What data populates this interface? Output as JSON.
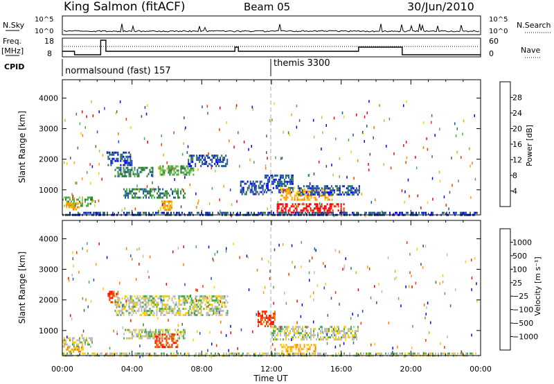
{
  "header": {
    "station": "King Salmon (fitACF)",
    "beam": "Beam 05",
    "date": "30/Jun/2010"
  },
  "top_panels": {
    "nsky_label": "N.Sky",
    "nsearch_label": "N.Search",
    "nsky_ticks": [
      "10^5",
      "10^0"
    ],
    "freq_label_1": "Freq.",
    "freq_label_2": "[MHz]",
    "freq_ticks": [
      "18",
      "8"
    ],
    "nave_label": "Nave",
    "nave_ticks": [
      "60",
      "0"
    ],
    "cpid_label": "CPID",
    "cpid_segments": [
      {
        "start_hour": 0.0,
        "name": "normalsound (fast) 157"
      },
      {
        "start_hour": 12.0,
        "name": "themis 3300"
      }
    ]
  },
  "colorbars": {
    "power": {
      "label": "Power [dB]",
      "ticks": [
        "28",
        "24",
        "20",
        "16",
        "12",
        "8",
        "4"
      ],
      "colors": [
        "#0000ff",
        "#1c4fb0",
        "#2e7a3a",
        "#4bab4b",
        "#9fd04a",
        "#ffd000",
        "#ffa500",
        "#ff7a00",
        "#ff3300",
        "#ff0000"
      ]
    },
    "velocity": {
      "label": "Velocity [m s⁻¹]",
      "ticks": [
        "1000",
        "500",
        "100",
        "25",
        "−25",
        "−100",
        "−500",
        "−1000"
      ],
      "colors": [
        "#0000ff",
        "#1c4fb0",
        "#2e7a3a",
        "#4bab4b",
        "#bbbbbb",
        "#ffd000",
        "#ffa500",
        "#ff7a00",
        "#ff3300",
        "#ff0000"
      ]
    }
  },
  "chart_data": [
    {
      "type": "heatmap",
      "title": "Power",
      "xlabel": "Time UT",
      "ylabel": "Slant Range [km]",
      "xlim": [
        0,
        24
      ],
      "ylim": [
        180,
        4600
      ],
      "x_ticks": [
        "00:00",
        "04:00",
        "08:00",
        "12:00",
        "16:00",
        "20:00",
        "00:00"
      ],
      "y_ticks": [
        "1000",
        "2000",
        "3000",
        "4000"
      ],
      "y_tick_values": [
        1000,
        2000,
        3000,
        4000
      ],
      "blobs": [
        {
          "t0": 0.0,
          "t1": 1.7,
          "r0": 450,
          "r1": 780,
          "level": 3
        },
        {
          "t0": 0.2,
          "t1": 1.0,
          "r0": 380,
          "r1": 600,
          "level": 6
        },
        {
          "t0": 2.6,
          "t1": 4.0,
          "r0": 1800,
          "r1": 2250,
          "level": 1
        },
        {
          "t0": 3.0,
          "t1": 5.2,
          "r0": 1450,
          "r1": 1750,
          "level": 2
        },
        {
          "t0": 5.5,
          "t1": 7.5,
          "r0": 1500,
          "r1": 1800,
          "level": 3
        },
        {
          "t0": 7.2,
          "t1": 9.5,
          "r0": 1750,
          "r1": 2150,
          "level": 1
        },
        {
          "t0": 3.5,
          "t1": 7.0,
          "r0": 750,
          "r1": 1050,
          "level": 2
        },
        {
          "t0": 5.6,
          "t1": 6.3,
          "r0": 350,
          "r1": 650,
          "level": 6
        },
        {
          "t0": 10.2,
          "t1": 11.6,
          "r0": 850,
          "r1": 1300,
          "level": 1
        },
        {
          "t0": 11.6,
          "t1": 13.2,
          "r0": 950,
          "r1": 1500,
          "level": 1
        },
        {
          "t0": 12.5,
          "t1": 15.5,
          "r0": 700,
          "r1": 1050,
          "level": 6
        },
        {
          "t0": 12.3,
          "t1": 16.2,
          "r0": 250,
          "r1": 560,
          "level": 9
        },
        {
          "t0": 13.5,
          "t1": 17.0,
          "r0": 850,
          "r1": 1150,
          "level": 1
        },
        {
          "t0": 0.0,
          "t1": 24.0,
          "r0": 180,
          "r1": 280,
          "level": 1
        }
      ]
    },
    {
      "type": "heatmap",
      "title": "Velocity",
      "xlabel": "Time UT",
      "ylabel": "Slant Range [km]",
      "xlim": [
        0,
        24
      ],
      "ylim": [
        180,
        4600
      ],
      "x_ticks": [
        "00:00",
        "04:00",
        "08:00",
        "12:00",
        "16:00",
        "20:00",
        "00:00"
      ],
      "y_ticks": [
        "1000",
        "2000",
        "3000",
        "4000"
      ],
      "y_tick_values": [
        1000,
        2000,
        3000,
        4000
      ],
      "blobs": [
        {
          "t0": 0.0,
          "t1": 1.7,
          "r0": 450,
          "r1": 780,
          "level": 4
        },
        {
          "t0": 0.2,
          "t1": 1.2,
          "r0": 300,
          "r1": 480,
          "level": 6
        },
        {
          "t0": 2.6,
          "t1": 3.2,
          "r0": 1900,
          "r1": 2300,
          "level": 8
        },
        {
          "t0": 3.0,
          "t1": 9.5,
          "r0": 1500,
          "r1": 2150,
          "level": 4
        },
        {
          "t0": 3.5,
          "t1": 7.0,
          "r0": 750,
          "r1": 1050,
          "level": 4
        },
        {
          "t0": 5.3,
          "t1": 6.6,
          "r0": 450,
          "r1": 900,
          "level": 8
        },
        {
          "t0": 11.2,
          "t1": 12.2,
          "r0": 1150,
          "r1": 1650,
          "level": 8
        },
        {
          "t0": 12.0,
          "t1": 17.0,
          "r0": 700,
          "r1": 1150,
          "level": 4
        },
        {
          "t0": 12.5,
          "t1": 14.5,
          "r0": 350,
          "r1": 560,
          "level": 6
        },
        {
          "t0": 0.0,
          "t1": 24.0,
          "r0": 180,
          "r1": 280,
          "level": 4
        }
      ]
    }
  ]
}
